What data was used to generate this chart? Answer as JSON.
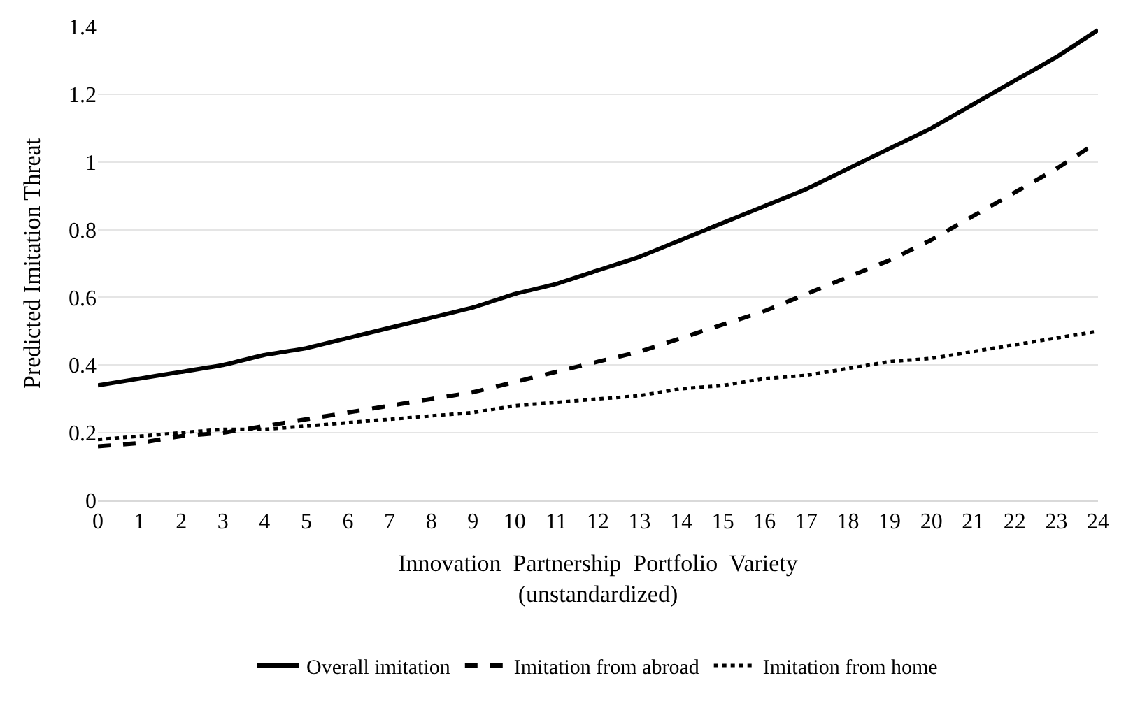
{
  "chart_data": {
    "type": "line",
    "xlabel": "Innovation  Partnership  Portfolio  Variety\n(unstandardized)",
    "ylabel": "Predicted Imitation Threat",
    "x": [
      0,
      1,
      2,
      3,
      4,
      5,
      6,
      7,
      8,
      9,
      10,
      11,
      12,
      13,
      14,
      15,
      16,
      17,
      18,
      19,
      20,
      21,
      22,
      23,
      24
    ],
    "series": [
      {
        "name": "Overall imitation",
        "color": "#000000",
        "line_style": "solid",
        "values": [
          0.34,
          0.36,
          0.38,
          0.4,
          0.43,
          0.45,
          0.48,
          0.51,
          0.54,
          0.57,
          0.61,
          0.64,
          0.68,
          0.72,
          0.77,
          0.82,
          0.87,
          0.92,
          0.98,
          1.04,
          1.1,
          1.17,
          1.24,
          1.31,
          1.39
        ]
      },
      {
        "name": "Imitation from abroad",
        "color": "#000000",
        "line_style": "dashed",
        "values": [
          0.16,
          0.17,
          0.19,
          0.2,
          0.22,
          0.24,
          0.26,
          0.28,
          0.3,
          0.32,
          0.35,
          0.38,
          0.41,
          0.44,
          0.48,
          0.52,
          0.56,
          0.61,
          0.66,
          0.71,
          0.77,
          0.84,
          0.91,
          0.98,
          1.06
        ]
      },
      {
        "name": "Imitation from home",
        "color": "#000000",
        "line_style": "dotted",
        "values": [
          0.18,
          0.19,
          0.2,
          0.21,
          0.21,
          0.22,
          0.23,
          0.24,
          0.25,
          0.26,
          0.28,
          0.29,
          0.3,
          0.31,
          0.33,
          0.34,
          0.36,
          0.37,
          0.39,
          0.41,
          0.42,
          0.44,
          0.46,
          0.48,
          0.5
        ]
      }
    ],
    "xlim": [
      0,
      24
    ],
    "xticks": [
      0,
      1,
      2,
      3,
      4,
      5,
      6,
      7,
      8,
      9,
      10,
      11,
      12,
      13,
      14,
      15,
      16,
      17,
      18,
      19,
      20,
      21,
      22,
      23,
      24
    ],
    "ylim": [
      0,
      1.4
    ],
    "yticks": [
      0,
      0.2,
      0.4,
      0.6,
      0.8,
      1,
      1.2,
      1.4
    ],
    "grid": "y",
    "legend": "bottom",
    "marker": "none"
  }
}
